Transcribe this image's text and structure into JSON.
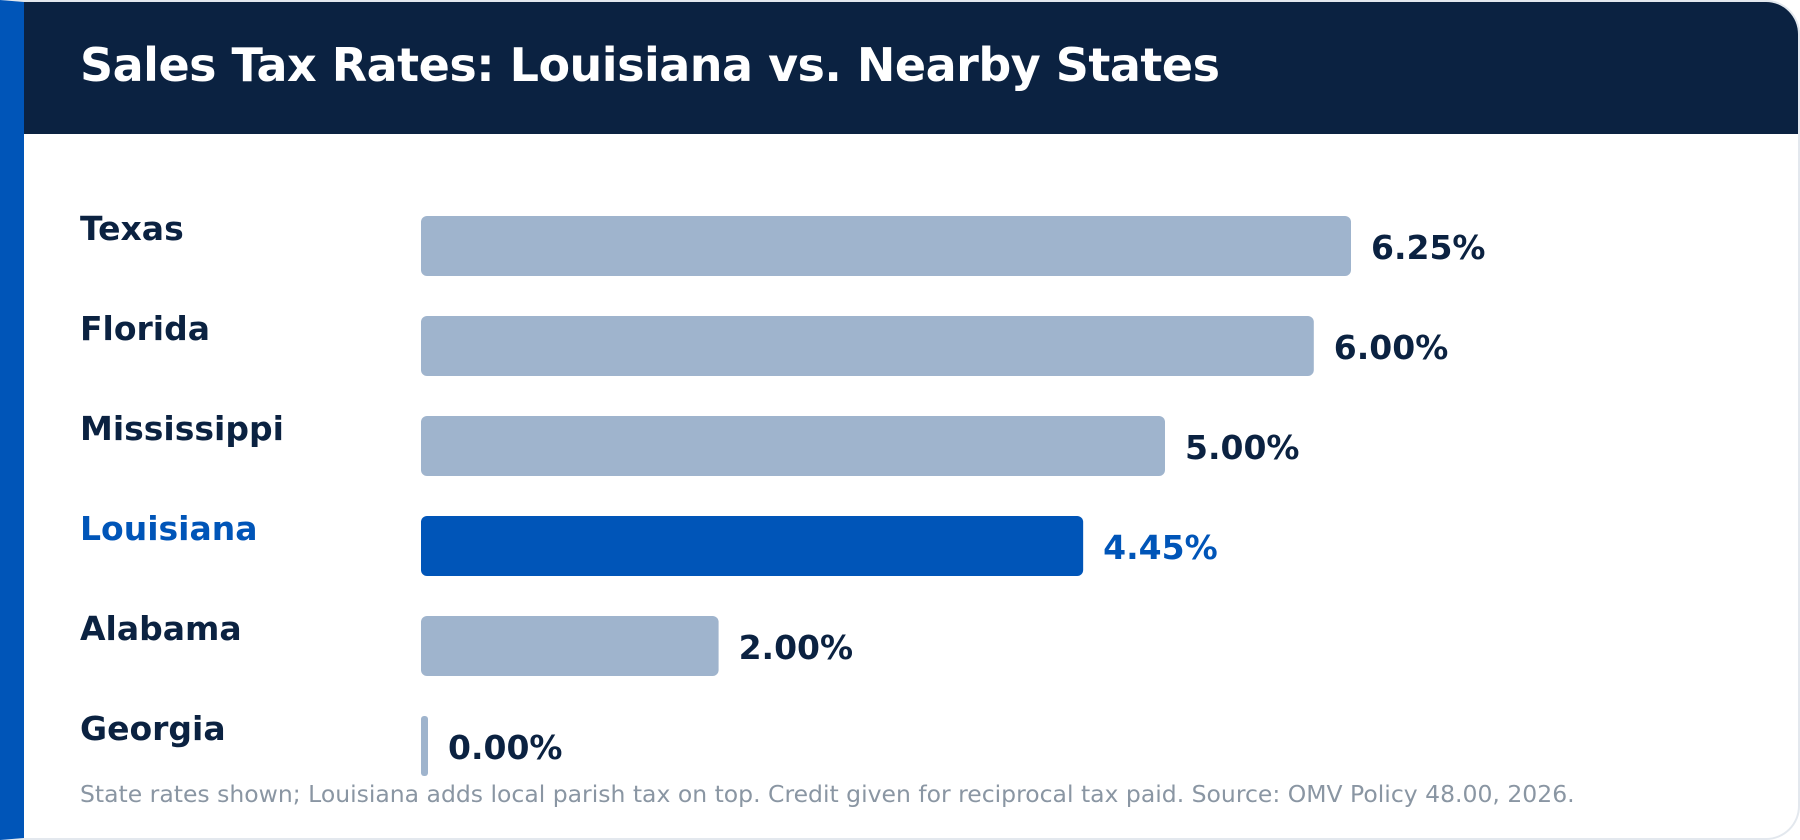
{
  "title": "Sales Tax Rates: Louisiana vs. Nearby States",
  "footnote": "State rates shown; Louisiana adds local parish tax on top. Credit given for reciprocal tax paid. Source: OMV Policy 48.00, 2026.",
  "colors": {
    "header": "#0b2241",
    "accent": "#0055b8",
    "bar": "#9fb4cd",
    "text": "#0b2241",
    "footnote": "#8a96a3"
  },
  "chart_data": {
    "type": "bar",
    "orientation": "horizontal",
    "categories": [
      "Texas",
      "Florida",
      "Mississippi",
      "Louisiana",
      "Alabama",
      "Georgia"
    ],
    "values": [
      6.25,
      6.0,
      5.0,
      4.45,
      2.0,
      0.0
    ],
    "value_labels": [
      "6.25%",
      "6.00%",
      "5.00%",
      "4.45%",
      "2.00%",
      "0.00%"
    ],
    "highlight": "Louisiana",
    "xlim": [
      0,
      6.25
    ],
    "grid": false,
    "legend": "none"
  }
}
